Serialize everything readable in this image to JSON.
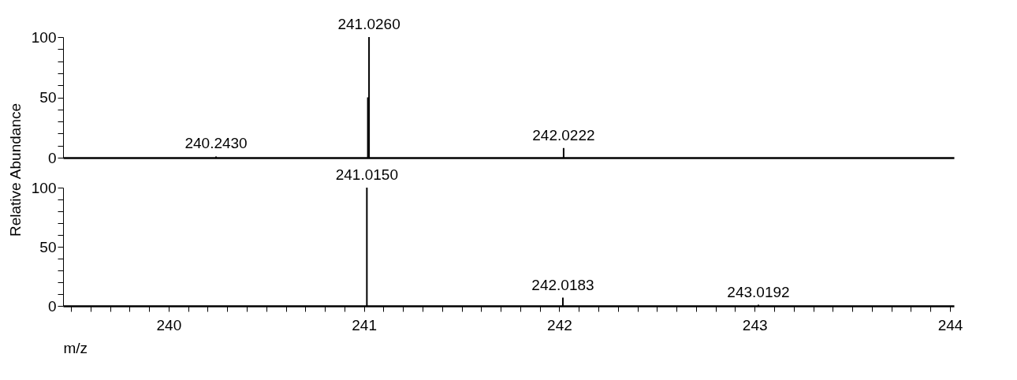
{
  "chart_data": [
    {
      "type": "bar",
      "ylabel": null,
      "xlim": [
        239.48,
        244
      ],
      "ylim": [
        0,
        100
      ],
      "yticks": [
        0,
        {
          "value": 10,
          "label": null
        },
        {
          "value": 20,
          "label": null
        },
        {
          "value": 30,
          "label": null
        },
        {
          "value": 40,
          "label": null
        },
        50,
        {
          "value": 60,
          "label": null
        },
        {
          "value": 70,
          "label": null
        },
        {
          "value": 80,
          "label": null
        },
        {
          "value": 90,
          "label": null
        },
        100
      ],
      "tick_labels": "y",
      "series": [
        {
          "color": "#000000",
          "x": [
            240.243,
            241.02,
            241.026,
            242.0222
          ],
          "values": [
            1,
            50,
            100,
            8
          ]
        }
      ],
      "annotations": [
        {
          "text": "240.2430",
          "x": 240.243,
          "y": 1
        },
        {
          "text": "241.0260",
          "x": 241.026,
          "y": 100
        },
        {
          "text": "242.0222",
          "x": 242.0222,
          "y": 8
        }
      ]
    },
    {
      "type": "bar",
      "xlabel": "m/z",
      "ylabel": "Relative Abundance",
      "xlim": [
        239.48,
        244
      ],
      "ylim": [
        0,
        100
      ],
      "xticks": [
        {
          "value": 239.5,
          "label": null
        },
        {
          "value": 239.6,
          "label": null
        },
        {
          "value": 239.7,
          "label": null
        },
        {
          "value": 239.8,
          "label": null
        },
        {
          "value": 239.9,
          "label": null
        },
        240,
        {
          "value": 240.1,
          "label": null
        },
        {
          "value": 240.2,
          "label": null
        },
        {
          "value": 240.3,
          "label": null
        },
        {
          "value": 240.4,
          "label": null
        },
        {
          "value": 240.5,
          "label": null
        },
        {
          "value": 240.6,
          "label": null
        },
        {
          "value": 240.7,
          "label": null
        },
        {
          "value": 240.8,
          "label": null
        },
        {
          "value": 240.9,
          "label": null
        },
        241,
        {
          "value": 241.1,
          "label": null
        },
        {
          "value": 241.2,
          "label": null
        },
        {
          "value": 241.3,
          "label": null
        },
        {
          "value": 241.4,
          "label": null
        },
        {
          "value": 241.5,
          "label": null
        },
        {
          "value": 241.6,
          "label": null
        },
        {
          "value": 241.7,
          "label": null
        },
        {
          "value": 241.8,
          "label": null
        },
        {
          "value": 241.9,
          "label": null
        },
        242,
        {
          "value": 242.1,
          "label": null
        },
        {
          "value": 242.2,
          "label": null
        },
        {
          "value": 242.3,
          "label": null
        },
        {
          "value": 242.4,
          "label": null
        },
        {
          "value": 242.5,
          "label": null
        },
        {
          "value": 242.6,
          "label": null
        },
        {
          "value": 242.7,
          "label": null
        },
        {
          "value": 242.8,
          "label": null
        },
        {
          "value": 242.9,
          "label": null
        },
        243,
        {
          "value": 243.1,
          "label": null
        },
        {
          "value": 243.2,
          "label": null
        },
        {
          "value": 243.3,
          "label": null
        },
        {
          "value": 243.4,
          "label": null
        },
        {
          "value": 243.5,
          "label": null
        },
        {
          "value": 243.6,
          "label": null
        },
        {
          "value": 243.7,
          "label": null
        },
        {
          "value": 243.8,
          "label": null
        },
        {
          "value": 243.9,
          "label": null
        },
        244
      ],
      "yticks": [
        0,
        {
          "value": 10,
          "label": null
        },
        {
          "value": 20,
          "label": null
        },
        {
          "value": 30,
          "label": null
        },
        {
          "value": 40,
          "label": null
        },
        50,
        {
          "value": 60,
          "label": null
        },
        {
          "value": 70,
          "label": null
        },
        {
          "value": 80,
          "label": null
        },
        {
          "value": 90,
          "label": null
        },
        100
      ],
      "series": [
        {
          "color": "#000000",
          "x": [
            241.015,
            242.0183,
            243.0192
          ],
          "values": [
            100,
            7,
            1
          ]
        }
      ],
      "annotations": [
        {
          "text": "241.0150",
          "x": 241.015,
          "y": 100
        },
        {
          "text": "242.0183",
          "x": 242.0183,
          "y": 7
        },
        {
          "text": "243.0192",
          "x": 243.0192,
          "y": 1
        }
      ]
    }
  ]
}
